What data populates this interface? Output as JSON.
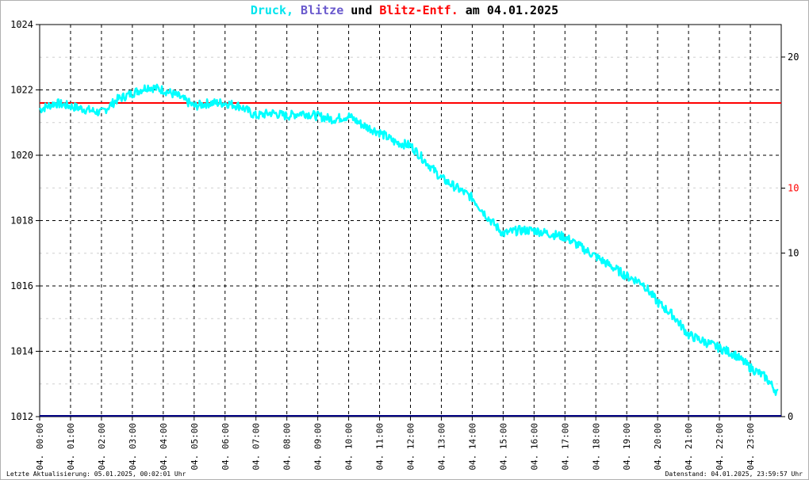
{
  "title": {
    "part1": "Druck,",
    "part2": "Blitze",
    "part3": "und",
    "part4": "Blitz-Entf.",
    "part5": "am 04.01.2025"
  },
  "colors": {
    "pressure": "#00ffff",
    "lightning": "#6a5acd",
    "distance": "#ff0000",
    "text": "#000000",
    "baseline": "#000080"
  },
  "footer": {
    "left": "Letzte Aktualisierung: 05.01.2025, 00:02:01 Uhr",
    "right": "Datenstand: 04.01.2025, 23:59:57 Uhr"
  },
  "chart_data": {
    "type": "line",
    "x_unit": "hour",
    "xlim": [
      0,
      24
    ],
    "ylim": [
      1012,
      1024
    ],
    "y2lim": [
      0,
      20
    ],
    "yticks": [
      "1012",
      "1014",
      "1016",
      "1018",
      "1020",
      "1022",
      "1024"
    ],
    "y2ticks": [
      {
        "label": "0",
        "color": "#000000"
      },
      {
        "label": "10",
        "color": "#ff0000"
      },
      {
        "label": "10",
        "color": "#000000"
      },
      {
        "label": "20",
        "color": "#ff0000"
      },
      {
        "label": "20",
        "color": "#000000"
      }
    ],
    "xticks": [
      "04. 00:00",
      "04. 01:00",
      "04. 02:00",
      "04. 03:00",
      "04. 04:00",
      "04. 05:00",
      "04. 06:00",
      "04. 07:00",
      "04. 08:00",
      "04. 09:00",
      "04. 10:00",
      "04. 11:00",
      "04. 12:00",
      "04. 13:00",
      "04. 14:00",
      "04. 15:00",
      "04. 16:00",
      "04. 17:00",
      "04. 18:00",
      "04. 19:00",
      "04. 20:00",
      "04. 21:00",
      "04. 22:00",
      "04. 23:00"
    ],
    "grid": true,
    "series": [
      {
        "name": "Druck",
        "x": [
          0,
          0.5,
          1,
          1.5,
          2,
          2.5,
          3,
          3.5,
          4,
          4.5,
          5,
          5.5,
          6,
          6.5,
          7,
          7.5,
          8,
          8.5,
          9,
          9.5,
          10,
          10.5,
          11,
          11.5,
          12,
          12.5,
          13,
          13.5,
          14,
          14.5,
          15,
          15.5,
          16,
          16.5,
          17,
          17.5,
          18,
          18.5,
          19,
          19.5,
          20,
          20.5,
          21,
          21.5,
          22,
          22.5,
          23,
          23.5,
          23.9
        ],
        "values": [
          1021.4,
          1021.6,
          1021.5,
          1021.4,
          1021.3,
          1021.7,
          1021.9,
          1022.1,
          1022.0,
          1021.8,
          1021.5,
          1021.6,
          1021.6,
          1021.5,
          1021.2,
          1021.3,
          1021.2,
          1021.3,
          1021.2,
          1021.1,
          1021.2,
          1020.9,
          1020.7,
          1020.4,
          1020.3,
          1019.8,
          1019.3,
          1019.0,
          1018.7,
          1018.1,
          1017.6,
          1017.7,
          1017.7,
          1017.6,
          1017.5,
          1017.2,
          1016.9,
          1016.6,
          1016.3,
          1016.1,
          1015.5,
          1015.1,
          1014.5,
          1014.3,
          1014.1,
          1013.9,
          1013.5,
          1013.2,
          1012.7
        ]
      },
      {
        "name": "Blitz-Entf.",
        "x": [
          0,
          24
        ],
        "values": [
          1021.6,
          1021.6
        ]
      },
      {
        "name": "Blitze",
        "x": [
          0,
          24
        ],
        "values": [
          1012,
          1012
        ]
      }
    ]
  }
}
